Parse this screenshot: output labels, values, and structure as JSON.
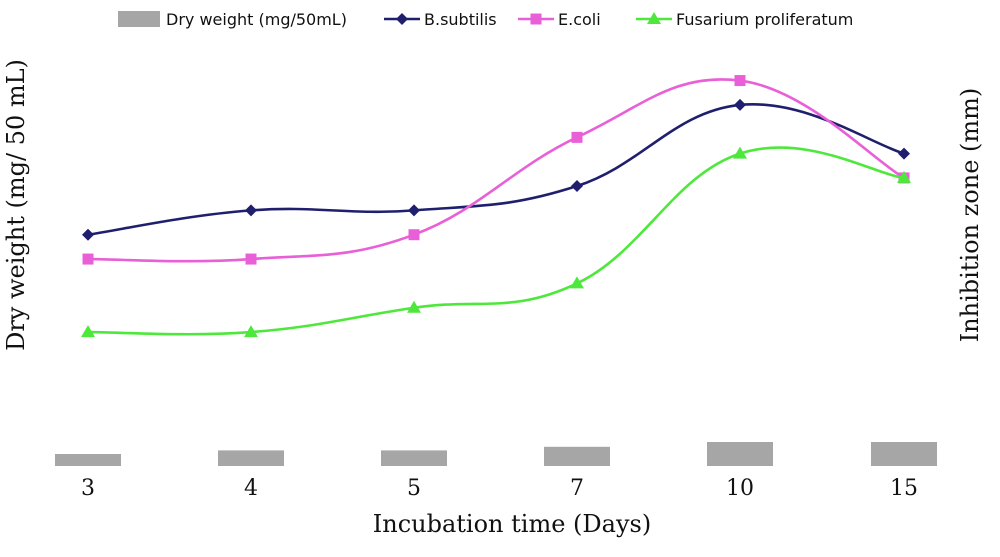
{
  "chart_data": {
    "type": "line",
    "categories": [
      "3",
      "4",
      "5",
      "7",
      "10",
      "15"
    ],
    "xlabel": "Incubation time (Days)",
    "ylabel_left": "Dry weight (mg/ 50 mL)",
    "ylabel_right": "Inhibition  zone (mm)",
    "legend_position": "top",
    "bar_series": {
      "name": "Dry weight (mg/50mL)",
      "color": "#a6a6a6",
      "values": [
        0.5,
        0.65,
        0.65,
        0.8,
        1.0,
        1.0
      ]
    },
    "series": [
      {
        "name": "B.subtilis",
        "color": "#1f1f6e",
        "marker": "diamond",
        "values": [
          8.4,
          8.7,
          8.7,
          9.0,
          10.0,
          9.4
        ]
      },
      {
        "name": "E.coli",
        "color": "#e85fd8",
        "marker": "square",
        "values": [
          8.1,
          8.1,
          8.4,
          9.6,
          10.3,
          9.1
        ]
      },
      {
        "name": "Fusarium proliferatum",
        "color": "#4ee83c",
        "marker": "triangle",
        "values": [
          7.2,
          7.2,
          7.5,
          7.8,
          9.4,
          9.1
        ]
      }
    ],
    "line_ylim": [
      5.5,
      10.8
    ],
    "bar_ylim": [
      0,
      2.0
    ]
  }
}
